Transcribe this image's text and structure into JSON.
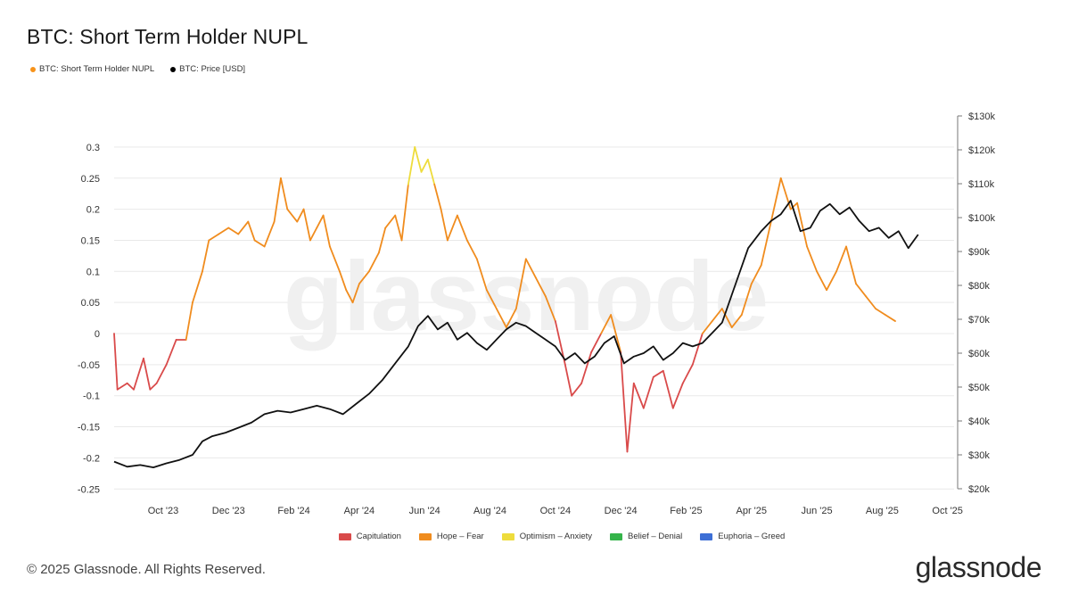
{
  "header": {
    "title": "BTC: Short Term Holder NUPL",
    "legend": [
      {
        "label": "BTC: Short Term Holder NUPL",
        "color": "#f7931a"
      },
      {
        "label": "BTC: Price [USD]",
        "color": "#000000"
      }
    ]
  },
  "footer": {
    "copyright": "© 2025 Glassnode. All Rights Reserved.",
    "logo": "glassnode",
    "watermark": "glassnode"
  },
  "chart_data": {
    "type": "line",
    "x_tick_labels": [
      "Oct '23",
      "Dec '23",
      "Feb '24",
      "Apr '24",
      "Jun '24",
      "Aug '24",
      "Oct '24",
      "Dec '24",
      "Feb '25",
      "Apr '25",
      "Jun '25",
      "Aug '25",
      "Oct '25"
    ],
    "y_left": {
      "ticks": [
        0.3,
        0.25,
        0.2,
        0.15,
        0.1,
        0.05,
        0,
        -0.05,
        -0.1,
        -0.15,
        -0.2,
        -0.25
      ],
      "range": [
        -0.25,
        0.33
      ]
    },
    "y_right": {
      "ticks": [
        "$130k",
        "$120k",
        "$110k",
        "$100k",
        "$90k",
        "$80k",
        "$70k",
        "$60k",
        "$50k",
        "$40k",
        "$30k",
        "$20k"
      ],
      "range": [
        20000,
        130000
      ]
    },
    "x_range_months": [
      0,
      25.7
    ],
    "series": [
      {
        "name": "BTC: Short Term Holder NUPL",
        "axis": "left",
        "points": [
          [
            0,
            0.0
          ],
          [
            0.1,
            -0.09
          ],
          [
            0.4,
            -0.08
          ],
          [
            0.6,
            -0.09
          ],
          [
            0.9,
            -0.04
          ],
          [
            1.1,
            -0.09
          ],
          [
            1.3,
            -0.08
          ],
          [
            1.6,
            -0.05
          ],
          [
            1.9,
            -0.01
          ],
          [
            2.2,
            -0.01
          ],
          [
            2.4,
            0.05
          ],
          [
            2.7,
            0.1
          ],
          [
            2.9,
            0.15
          ],
          [
            3.2,
            0.16
          ],
          [
            3.5,
            0.17
          ],
          [
            3.8,
            0.16
          ],
          [
            4.1,
            0.18
          ],
          [
            4.3,
            0.15
          ],
          [
            4.6,
            0.14
          ],
          [
            4.9,
            0.18
          ],
          [
            5.1,
            0.25
          ],
          [
            5.3,
            0.2
          ],
          [
            5.6,
            0.18
          ],
          [
            5.8,
            0.2
          ],
          [
            6.0,
            0.15
          ],
          [
            6.2,
            0.17
          ],
          [
            6.4,
            0.19
          ],
          [
            6.6,
            0.14
          ],
          [
            6.9,
            0.1
          ],
          [
            7.1,
            0.07
          ],
          [
            7.3,
            0.05
          ],
          [
            7.5,
            0.08
          ],
          [
            7.8,
            0.1
          ],
          [
            8.1,
            0.13
          ],
          [
            8.3,
            0.17
          ],
          [
            8.6,
            0.19
          ],
          [
            8.8,
            0.15
          ],
          [
            9.0,
            0.24
          ],
          [
            9.2,
            0.3
          ],
          [
            9.4,
            0.26
          ],
          [
            9.6,
            0.28
          ],
          [
            9.8,
            0.24
          ],
          [
            10.0,
            0.2
          ],
          [
            10.2,
            0.15
          ],
          [
            10.5,
            0.19
          ],
          [
            10.8,
            0.15
          ],
          [
            11.1,
            0.12
          ],
          [
            11.4,
            0.07
          ],
          [
            11.7,
            0.04
          ],
          [
            12.0,
            0.01
          ],
          [
            12.3,
            0.04
          ],
          [
            12.6,
            0.12
          ],
          [
            12.9,
            0.09
          ],
          [
            13.2,
            0.06
          ],
          [
            13.5,
            0.02
          ],
          [
            13.8,
            -0.05
          ],
          [
            14.0,
            -0.1
          ],
          [
            14.3,
            -0.08
          ],
          [
            14.6,
            -0.03
          ],
          [
            14.9,
            0.0
          ],
          [
            15.2,
            0.03
          ],
          [
            15.5,
            -0.03
          ],
          [
            15.7,
            -0.19
          ],
          [
            15.9,
            -0.08
          ],
          [
            16.2,
            -0.12
          ],
          [
            16.5,
            -0.07
          ],
          [
            16.8,
            -0.06
          ],
          [
            17.1,
            -0.12
          ],
          [
            17.4,
            -0.08
          ],
          [
            17.7,
            -0.05
          ],
          [
            18.0,
            0.0
          ],
          [
            18.3,
            0.02
          ],
          [
            18.6,
            0.04
          ],
          [
            18.9,
            0.01
          ],
          [
            19.2,
            0.03
          ],
          [
            19.5,
            0.08
          ],
          [
            19.8,
            0.11
          ],
          [
            20.1,
            0.18
          ],
          [
            20.4,
            0.25
          ],
          [
            20.7,
            0.2
          ],
          [
            20.9,
            0.21
          ],
          [
            21.2,
            0.14
          ],
          [
            21.5,
            0.1
          ],
          [
            21.8,
            0.07
          ],
          [
            22.1,
            0.1
          ],
          [
            22.4,
            0.14
          ],
          [
            22.7,
            0.08
          ],
          [
            23.0,
            0.06
          ],
          [
            23.3,
            0.04
          ],
          [
            23.6,
            0.03
          ],
          [
            23.9,
            0.02
          ]
        ]
      },
      {
        "name": "BTC: Price [USD]",
        "axis": "right",
        "points": [
          [
            0,
            28000
          ],
          [
            0.4,
            26500
          ],
          [
            0.8,
            27000
          ],
          [
            1.2,
            26300
          ],
          [
            1.6,
            27500
          ],
          [
            2.0,
            28500
          ],
          [
            2.4,
            30000
          ],
          [
            2.7,
            34000
          ],
          [
            3.0,
            35500
          ],
          [
            3.4,
            36500
          ],
          [
            3.8,
            38000
          ],
          [
            4.2,
            39500
          ],
          [
            4.6,
            42000
          ],
          [
            5.0,
            43000
          ],
          [
            5.4,
            42500
          ],
          [
            5.8,
            43500
          ],
          [
            6.2,
            44500
          ],
          [
            6.6,
            43500
          ],
          [
            7.0,
            42000
          ],
          [
            7.4,
            45000
          ],
          [
            7.8,
            48000
          ],
          [
            8.2,
            52000
          ],
          [
            8.6,
            57000
          ],
          [
            9.0,
            62000
          ],
          [
            9.3,
            68000
          ],
          [
            9.6,
            71000
          ],
          [
            9.9,
            67000
          ],
          [
            10.2,
            69000
          ],
          [
            10.5,
            64000
          ],
          [
            10.8,
            66000
          ],
          [
            11.1,
            63000
          ],
          [
            11.4,
            61000
          ],
          [
            11.7,
            64000
          ],
          [
            12.0,
            67000
          ],
          [
            12.3,
            69000
          ],
          [
            12.6,
            68000
          ],
          [
            12.9,
            66000
          ],
          [
            13.2,
            64000
          ],
          [
            13.5,
            62000
          ],
          [
            13.8,
            58000
          ],
          [
            14.1,
            60000
          ],
          [
            14.4,
            57000
          ],
          [
            14.7,
            59000
          ],
          [
            15.0,
            63000
          ],
          [
            15.3,
            65000
          ],
          [
            15.6,
            57000
          ],
          [
            15.9,
            59000
          ],
          [
            16.2,
            60000
          ],
          [
            16.5,
            62000
          ],
          [
            16.8,
            58000
          ],
          [
            17.1,
            60000
          ],
          [
            17.4,
            63000
          ],
          [
            17.7,
            62000
          ],
          [
            18.0,
            63000
          ],
          [
            18.3,
            66000
          ],
          [
            18.6,
            69000
          ],
          [
            19.0,
            80000
          ],
          [
            19.4,
            91000
          ],
          [
            19.8,
            96000
          ],
          [
            20.1,
            99000
          ],
          [
            20.4,
            101000
          ],
          [
            20.7,
            105000
          ],
          [
            21.0,
            96000
          ],
          [
            21.3,
            97000
          ],
          [
            21.6,
            102000
          ],
          [
            21.9,
            104000
          ],
          [
            22.2,
            101000
          ],
          [
            22.5,
            103000
          ],
          [
            22.8,
            99000
          ],
          [
            23.1,
            96000
          ],
          [
            23.4,
            97000
          ],
          [
            23.7,
            94000
          ],
          [
            24.0,
            96000
          ],
          [
            24.3,
            91000
          ],
          [
            24.6,
            95000
          ]
        ]
      }
    ],
    "legend": [
      {
        "label": "Capitulation",
        "color": "#d94a4a"
      },
      {
        "label": "Hope – Fear",
        "color": "#f08c1e"
      },
      {
        "label": "Optimism – Anxiety",
        "color": "#eedc3c"
      },
      {
        "label": "Belief – Denial",
        "color": "#35b44a"
      },
      {
        "label": "Euphoria – Greed",
        "color": "#3d6fd6"
      }
    ]
  }
}
